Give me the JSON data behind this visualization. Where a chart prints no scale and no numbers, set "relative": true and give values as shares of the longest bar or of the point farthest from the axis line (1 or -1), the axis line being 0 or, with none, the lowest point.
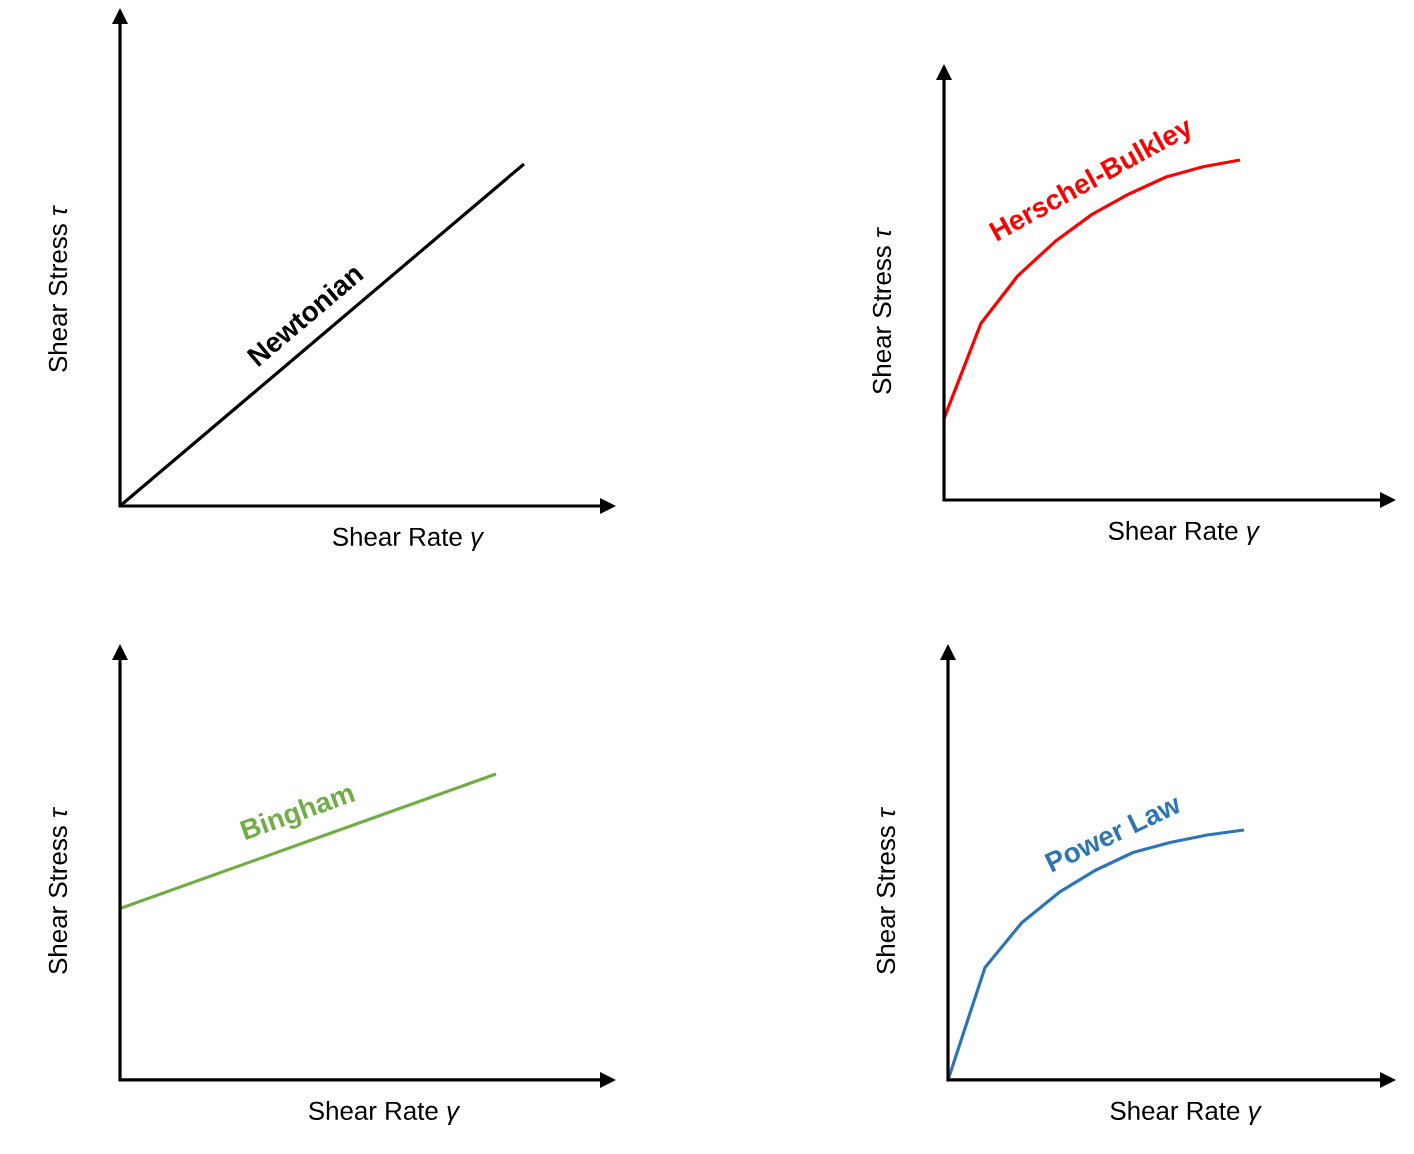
{
  "chart_data": [
    {
      "type": "line",
      "relative": true,
      "xlabel": "Shear Rate *γ*",
      "ylabel": "Shear Stress *τ*",
      "marker": "none",
      "categories": [
        null,
        null,
        null,
        null,
        null
      ],
      "series": [
        {
          "name": "**Newtonian**",
          "color": "#000000",
          "values": [
            0,
            0.25,
            0.5,
            0.75,
            1.0
          ]
        }
      ]
    },
    {
      "type": "line",
      "relative": true,
      "xlabel": "Shear Rate *γ*",
      "ylabel": "Shear Stress *τ*",
      "marker": "none",
      "categories": [
        null,
        null,
        null,
        null,
        null,
        null,
        null,
        null,
        null
      ],
      "series": [
        {
          "name": "**Herschel-Bulkley**",
          "color": "#ff0000",
          "values": [
            0.24,
            0.52,
            0.66,
            0.76,
            0.84,
            0.9,
            0.95,
            0.98,
            1.0
          ]
        }
      ]
    },
    {
      "type": "line",
      "relative": true,
      "xlabel": "Shear Rate *γ*",
      "ylabel": "Shear Stress *τ*",
      "marker": "none",
      "categories": [
        null,
        null,
        null
      ],
      "series": [
        {
          "name": "**Bingham**",
          "color": "#70ad47",
          "values": [
            0.56,
            0.78,
            1.0
          ]
        }
      ]
    },
    {
      "type": "line",
      "relative": true,
      "xlabel": "Shear Rate *γ*",
      "ylabel": "Shear Stress *τ*",
      "marker": "none",
      "categories": [
        null,
        null,
        null,
        null,
        null,
        null,
        null,
        null,
        null
      ],
      "series": [
        {
          "name": "**Power Law**",
          "color": "#2e75b6",
          "values": [
            0,
            0.45,
            0.63,
            0.75,
            0.84,
            0.91,
            0.95,
            0.98,
            1.0
          ]
        }
      ]
    }
  ]
}
